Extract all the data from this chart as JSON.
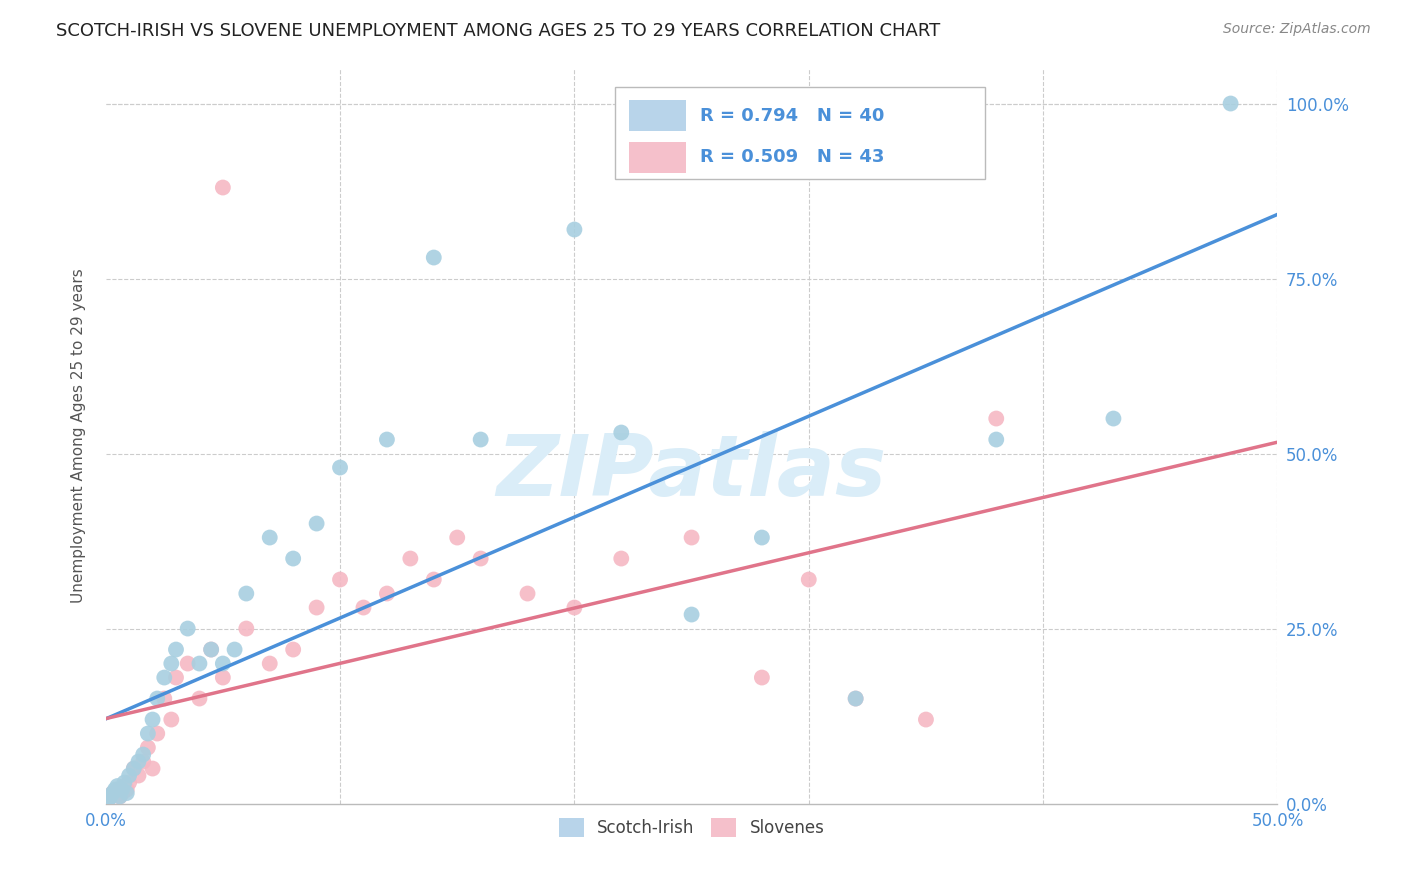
{
  "title": "SCOTCH-IRISH VS SLOVENE UNEMPLOYMENT AMONG AGES 25 TO 29 YEARS CORRELATION CHART",
  "source": "Source: ZipAtlas.com",
  "ylabel": "Unemployment Among Ages 25 to 29 years",
  "xmin": 0.0,
  "xmax": 0.5,
  "ymin": 0.0,
  "ymax": 1.05,
  "xticks_show": [
    0.0,
    0.5
  ],
  "xtick_labels_show": [
    "0.0%",
    "50.0%"
  ],
  "yticks": [
    0.0,
    0.25,
    0.5,
    0.75,
    1.0
  ],
  "ytick_labels": [
    "0.0%",
    "25.0%",
    "50.0%",
    "75.0%",
    "100.0%"
  ],
  "grid_xticks": [
    0.0,
    0.1,
    0.2,
    0.3,
    0.4,
    0.5
  ],
  "grid_yticks": [
    0.0,
    0.25,
    0.5,
    0.75,
    1.0
  ],
  "scotch_irish_R": 0.794,
  "scotch_irish_N": 40,
  "slovene_R": 0.509,
  "slovene_N": 43,
  "scotch_irish_color": "#a8cfe0",
  "slovene_color": "#f5b8c4",
  "scotch_irish_line_color": "#4a90d9",
  "slovene_line_color": "#e0748a",
  "legend_box_blue": "#b8d4ea",
  "legend_box_pink": "#f5c0cb",
  "watermark_color": "#daedf8",
  "scotch_irish_x": [
    0.001,
    0.002,
    0.003,
    0.004,
    0.005,
    0.006,
    0.007,
    0.008,
    0.009,
    0.01,
    0.012,
    0.014,
    0.016,
    0.018,
    0.02,
    0.022,
    0.025,
    0.028,
    0.03,
    0.035,
    0.04,
    0.045,
    0.05,
    0.055,
    0.06,
    0.07,
    0.08,
    0.09,
    0.1,
    0.12,
    0.14,
    0.16,
    0.2,
    0.22,
    0.25,
    0.28,
    0.32,
    0.38,
    0.43,
    0.48
  ],
  "scotch_irish_y": [
    0.005,
    0.01,
    0.015,
    0.02,
    0.025,
    0.01,
    0.02,
    0.03,
    0.015,
    0.04,
    0.05,
    0.06,
    0.07,
    0.1,
    0.12,
    0.15,
    0.18,
    0.2,
    0.22,
    0.25,
    0.2,
    0.22,
    0.2,
    0.22,
    0.3,
    0.38,
    0.35,
    0.4,
    0.48,
    0.52,
    0.78,
    0.52,
    0.82,
    0.53,
    0.27,
    0.38,
    0.15,
    0.52,
    0.55,
    1.0
  ],
  "slovene_x": [
    0.001,
    0.002,
    0.003,
    0.005,
    0.006,
    0.007,
    0.008,
    0.009,
    0.01,
    0.012,
    0.014,
    0.016,
    0.018,
    0.02,
    0.022,
    0.025,
    0.028,
    0.03,
    0.035,
    0.04,
    0.045,
    0.05,
    0.06,
    0.07,
    0.08,
    0.09,
    0.1,
    0.11,
    0.12,
    0.13,
    0.14,
    0.15,
    0.16,
    0.18,
    0.2,
    0.22,
    0.25,
    0.28,
    0.3,
    0.32,
    0.35,
    0.38,
    0.05
  ],
  "slovene_y": [
    0.005,
    0.01,
    0.015,
    0.02,
    0.01,
    0.015,
    0.025,
    0.02,
    0.03,
    0.05,
    0.04,
    0.06,
    0.08,
    0.05,
    0.1,
    0.15,
    0.12,
    0.18,
    0.2,
    0.15,
    0.22,
    0.18,
    0.25,
    0.2,
    0.22,
    0.28,
    0.32,
    0.28,
    0.3,
    0.35,
    0.32,
    0.38,
    0.35,
    0.3,
    0.28,
    0.35,
    0.38,
    0.18,
    0.32,
    0.15,
    0.12,
    0.55,
    0.88
  ]
}
